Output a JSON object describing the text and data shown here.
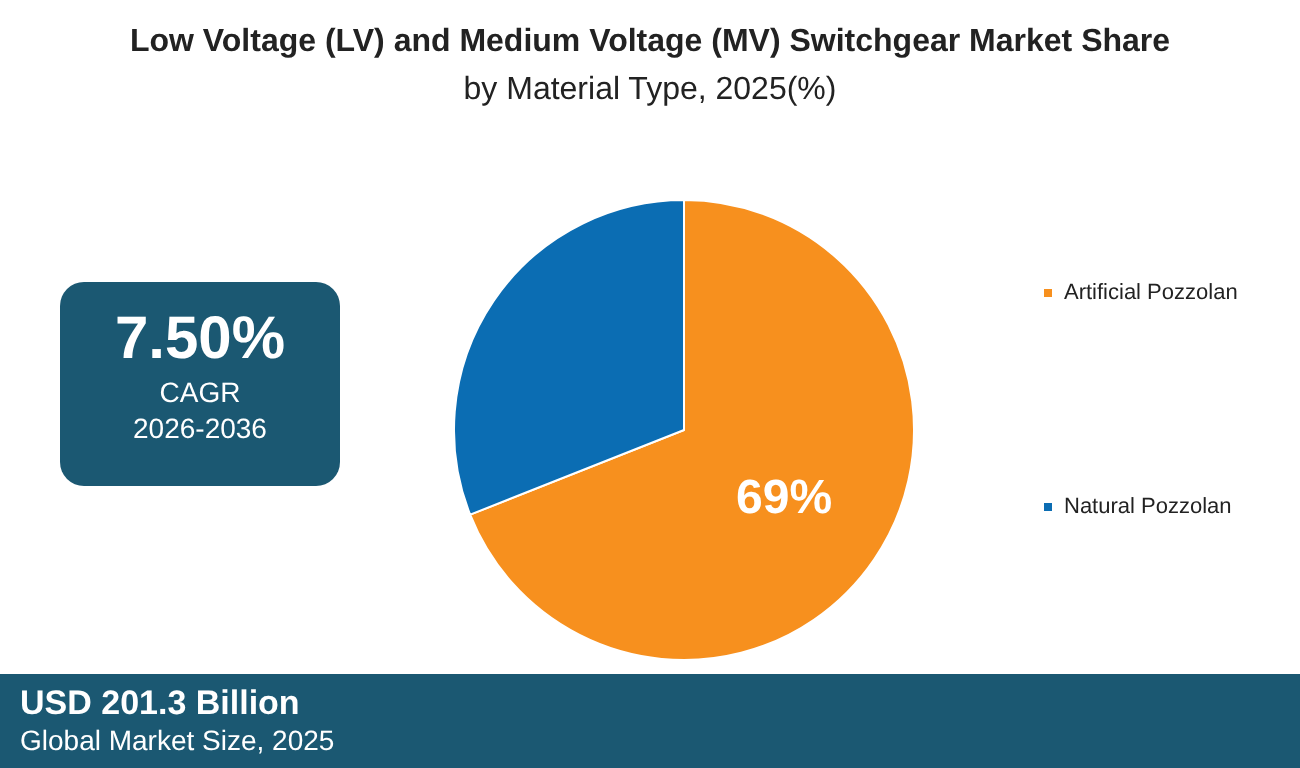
{
  "chart_data": {
    "type": "pie",
    "title": "Low Voltage (LV) and Medium Voltage (MV) Switchgear Market Share",
    "subtitle": "by Material Type, 2025(%)",
    "categories": [
      "Artificial Pozzolan",
      "Natural Pozzolan"
    ],
    "values": [
      69,
      31
    ],
    "colors": [
      "#f7901e",
      "#0b6db3"
    ],
    "value_labels": [
      "69%",
      null
    ],
    "legend": "right",
    "annotations": [
      "7.50%",
      "CAGR",
      "2026-2036",
      "USD 201.3 Billion",
      "Global Market Size, 2025"
    ]
  }
}
